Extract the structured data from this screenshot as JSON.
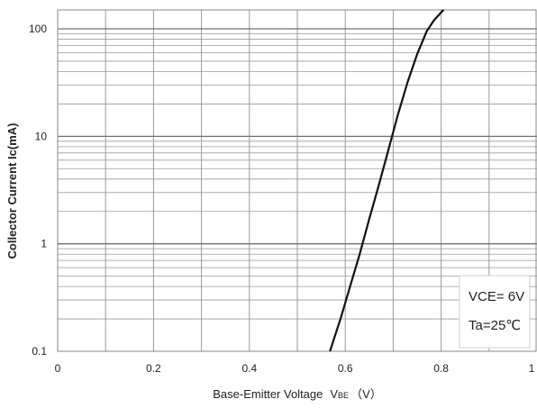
{
  "chart_data": {
    "type": "line",
    "title": "",
    "xlabel": "Base-Emitter Voltage",
    "xlabel_symbol": "V",
    "xlabel_subscript": "BE",
    "xlabel_unit": "（V）",
    "ylabel": "Collector Current   Ic(mA)",
    "xlim": [
      0,
      1.0
    ],
    "ylim": [
      0.1,
      150
    ],
    "yscale": "log",
    "xticks": [
      0,
      0.2,
      0.4,
      0.6,
      0.8,
      1.0
    ],
    "xtick_labels": [
      "0",
      "0.2",
      "0.4",
      "0.6",
      "0.8",
      "1"
    ],
    "yticks": [
      0.1,
      1,
      10,
      100
    ],
    "ytick_labels": [
      "0.1",
      "1",
      "10",
      "100"
    ],
    "grid": true,
    "legend_position": "bottom-right",
    "annotations": [
      "VCE= 6V",
      "Ta=25℃"
    ],
    "series": [
      {
        "x": [
          0.568,
          0.59,
          0.61,
          0.63,
          0.65,
          0.67,
          0.69,
          0.71,
          0.73,
          0.75,
          0.77,
          0.785,
          0.8,
          0.805
        ],
        "values": [
          0.1,
          0.2,
          0.4,
          0.8,
          1.7,
          3.5,
          7.5,
          16,
          32,
          58,
          95,
          120,
          142,
          150
        ]
      }
    ],
    "colors": {
      "line": "#111111",
      "grid": "#9a9a9a",
      "frame": "#888888"
    }
  }
}
